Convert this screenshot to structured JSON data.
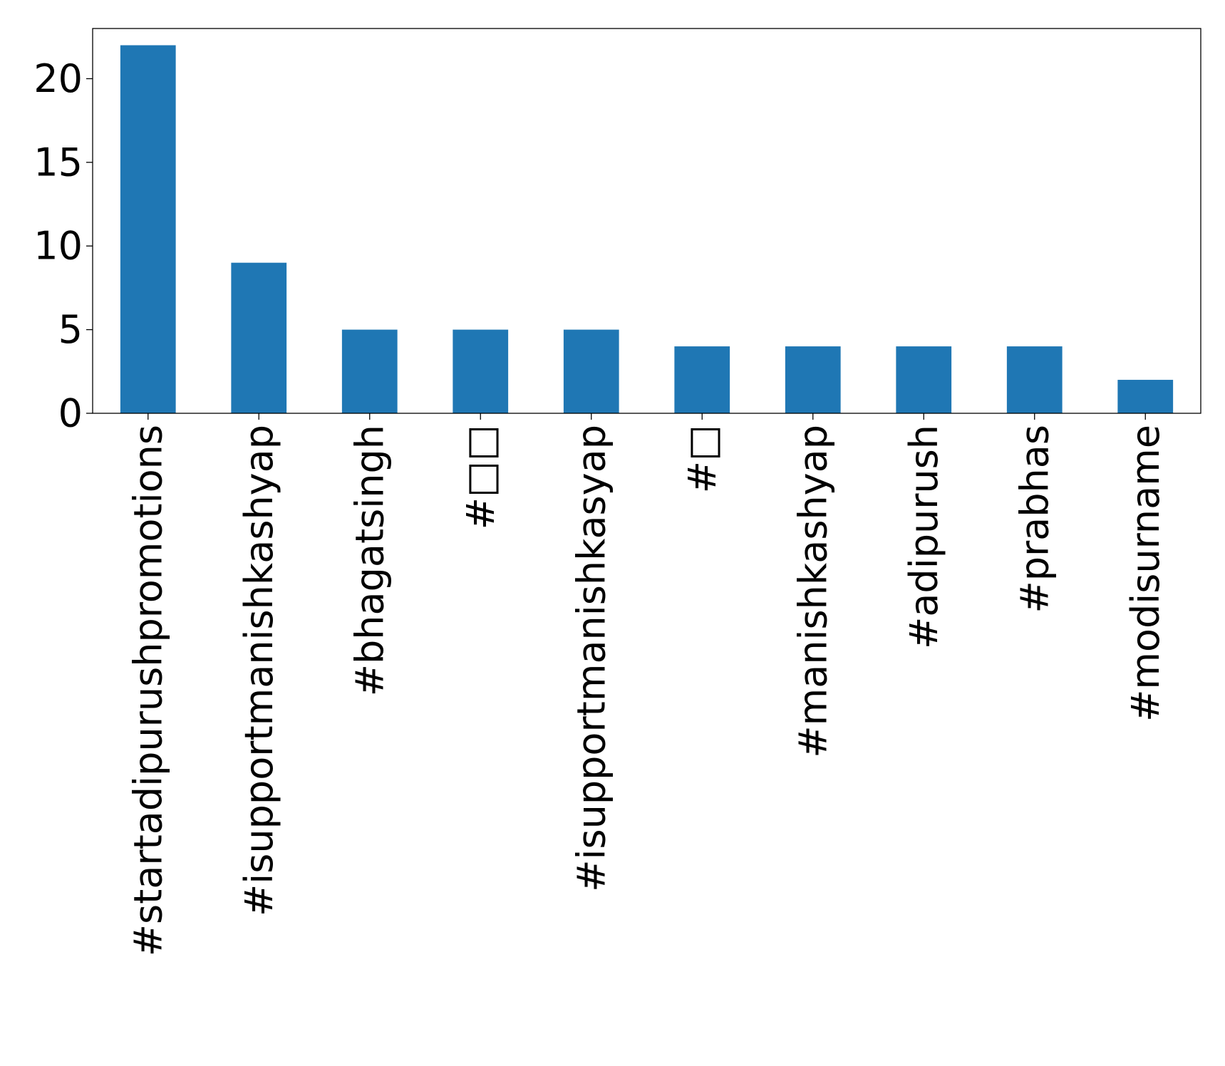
{
  "chart_data": {
    "type": "bar",
    "categories": [
      "#startadipurushpromotions",
      "#isupportmanishkashyap",
      "#bhagatsingh",
      "#□□",
      "#isupportmanishkasyap",
      "#□",
      "#manishkashyap",
      "#adipurush",
      "#prabhas",
      "#modisurname"
    ],
    "values": [
      22,
      9,
      5,
      5,
      5,
      4,
      4,
      4,
      4,
      2
    ],
    "ylim": [
      0,
      23
    ],
    "yticks": [
      0,
      5,
      10,
      15,
      20
    ],
    "title": "",
    "xlabel": "",
    "ylabel": "",
    "grid": false,
    "bar_color": "#1f77b4"
  }
}
